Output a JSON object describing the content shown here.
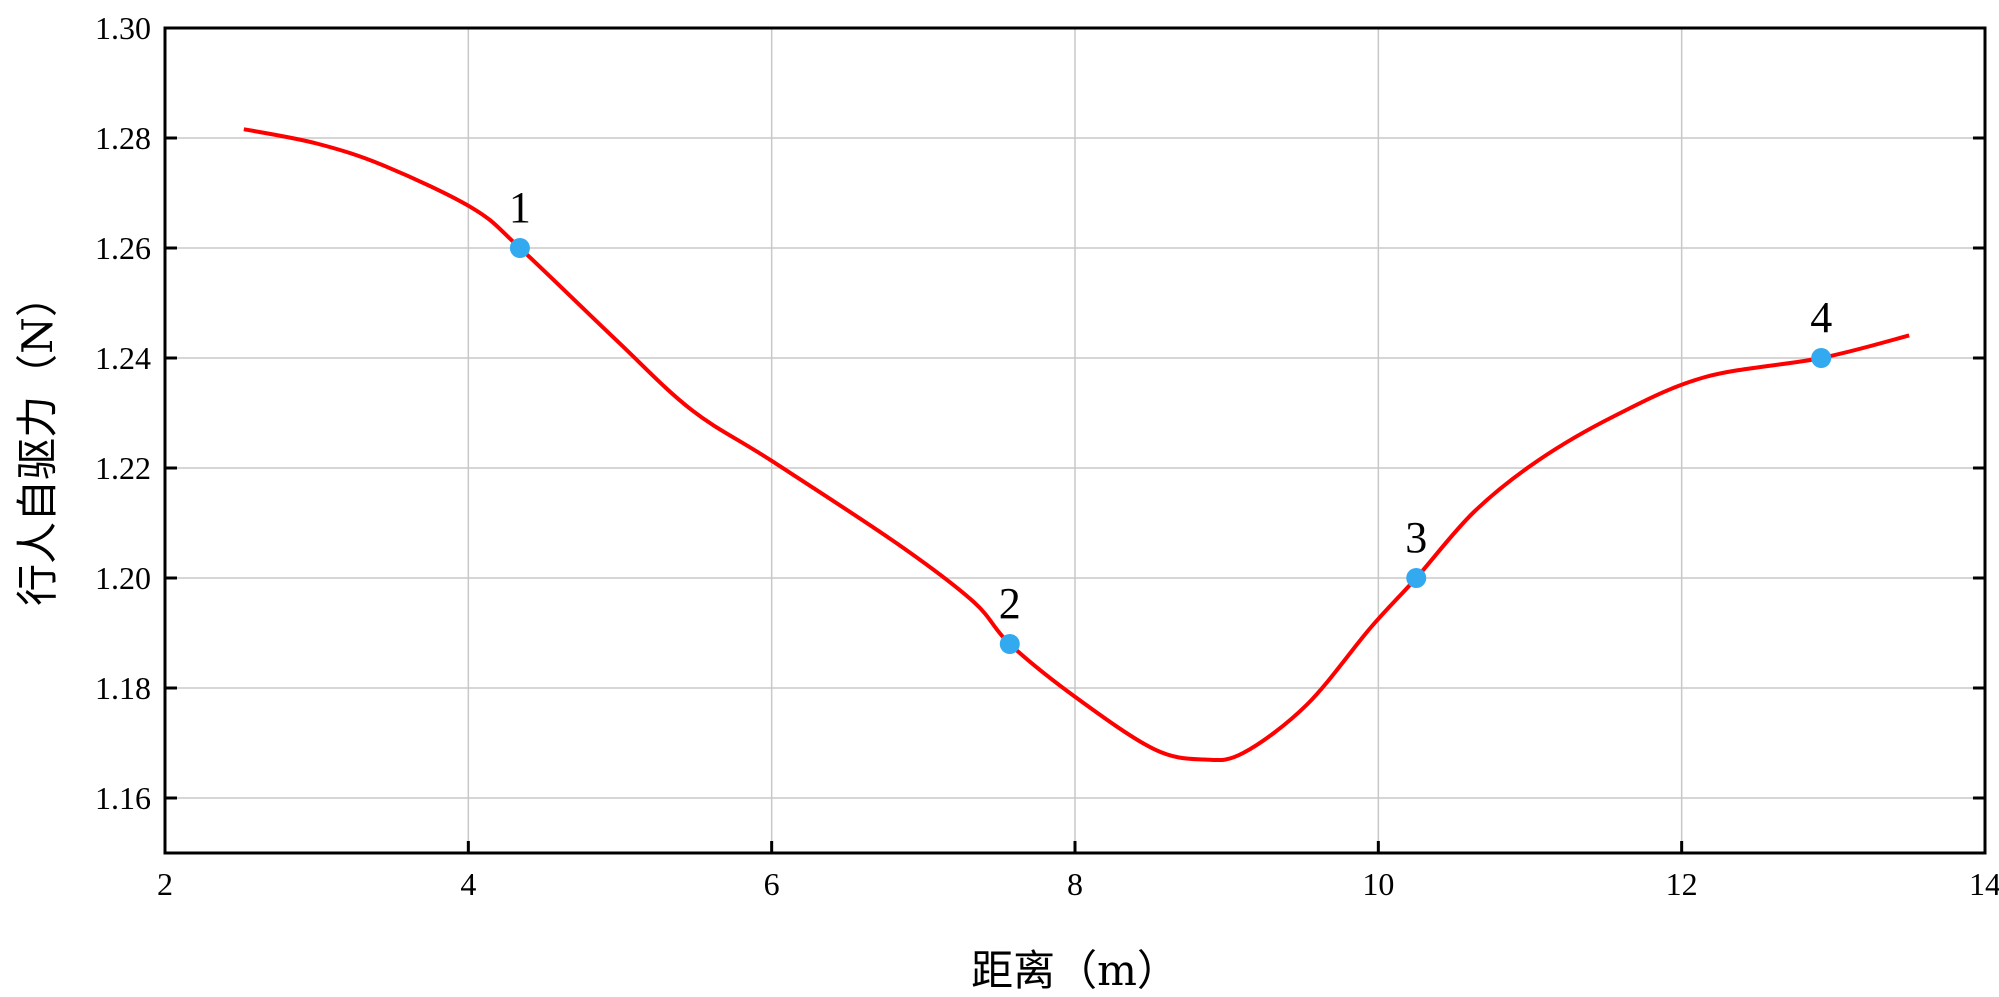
{
  "chart_data": {
    "type": "line",
    "title": "",
    "xlabel": "距离（m）",
    "ylabel": "行人自驱力（N）",
    "xlim": [
      2,
      14
    ],
    "ylim": [
      1.15,
      1.3
    ],
    "xticks": [
      "2",
      "4",
      "6",
      "8",
      "10",
      "12",
      "14"
    ],
    "yticks": [
      "1.16",
      "1.18",
      "1.20",
      "1.22",
      "1.24",
      "1.26",
      "1.28",
      "1.30"
    ],
    "grid": true,
    "line_color": "#ff0000",
    "marker_color": "#33aaf0",
    "series": [
      {
        "x": [
          2.52,
          3.0,
          3.45,
          4.03,
          4.34,
          4.97,
          5.47,
          6.0,
          6.83,
          7.33,
          7.57,
          8.01,
          8.52,
          8.85,
          9.11,
          9.53,
          9.95,
          10.25,
          10.63,
          11.05,
          11.56,
          12.15,
          12.92,
          13.5
        ],
        "y": [
          1.2816,
          1.279,
          1.2749,
          1.2672,
          1.26,
          1.2434,
          1.2306,
          1.2213,
          1.2062,
          1.1957,
          1.188,
          1.1782,
          1.1689,
          1.167,
          1.1682,
          1.177,
          1.191,
          1.2,
          1.212,
          1.2213,
          1.2295,
          1.2365,
          1.24,
          1.2441
        ]
      }
    ],
    "annotations": [
      {
        "label": "1",
        "x": 4.34,
        "y": 1.26
      },
      {
        "label": "2",
        "x": 7.57,
        "y": 1.188
      },
      {
        "label": "3",
        "x": 10.25,
        "y": 1.2
      },
      {
        "label": "4",
        "x": 12.92,
        "y": 1.24
      }
    ]
  }
}
